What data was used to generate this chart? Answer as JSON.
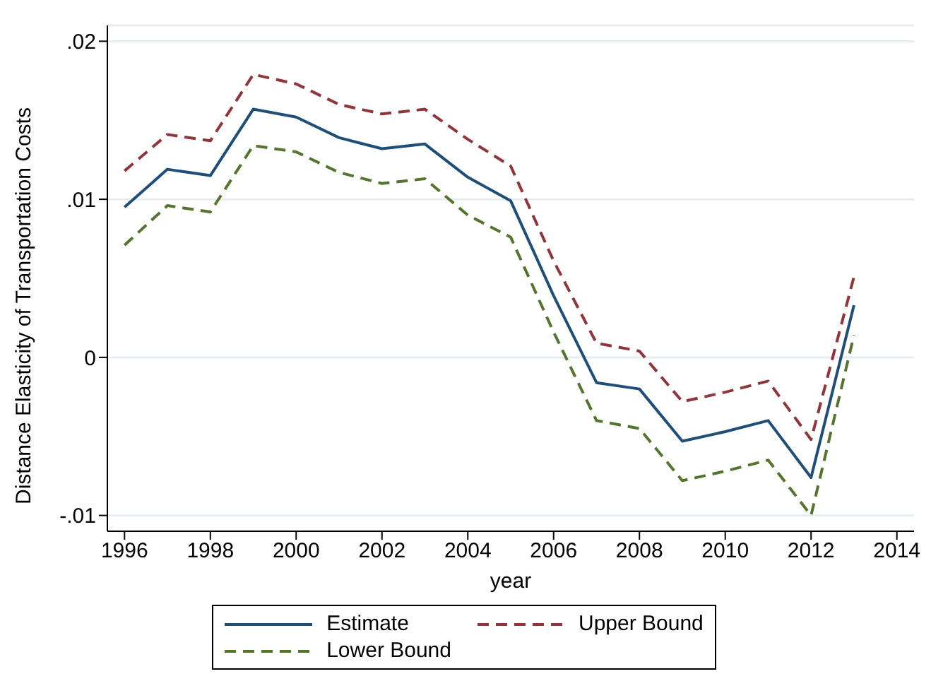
{
  "chart_data": {
    "type": "line",
    "xlabel": "year",
    "ylabel": "Distance Elasticity of Transportation Costs",
    "x": [
      1996,
      1997,
      1998,
      1999,
      2000,
      2001,
      2002,
      2003,
      2004,
      2005,
      2006,
      2007,
      2008,
      2009,
      2010,
      2011,
      2012,
      2013
    ],
    "series": [
      {
        "name": "Estimate",
        "color": "#1f4e79",
        "line_style": "solid",
        "values": [
          0.0095,
          0.0119,
          0.0115,
          0.0157,
          0.0152,
          0.0139,
          0.0132,
          0.0135,
          0.0114,
          0.0099,
          0.0039,
          -0.0016,
          -0.002,
          -0.0053,
          -0.0047,
          -0.004,
          -0.0076,
          0.0033
        ]
      },
      {
        "name": "Upper Bound",
        "color": "#90353b",
        "line_style": "dashed",
        "values": [
          0.0118,
          0.0141,
          0.0137,
          0.0179,
          0.0173,
          0.016,
          0.0154,
          0.0157,
          0.0138,
          0.0121,
          0.0061,
          0.0009,
          0.0004,
          -0.0028,
          -0.0022,
          -0.0015,
          -0.0052,
          0.0051
        ]
      },
      {
        "name": "Lower Bound",
        "color": "#55752f",
        "line_style": "dashed",
        "values": [
          0.0071,
          0.0096,
          0.0092,
          0.0134,
          0.013,
          0.0117,
          0.011,
          0.0113,
          0.009,
          0.0076,
          0.0016,
          -0.004,
          -0.0045,
          -0.0078,
          -0.0072,
          -0.0065,
          -0.01,
          0.0014
        ]
      }
    ],
    "xlim": [
      1995.6,
      2014.4
    ],
    "xticks": [
      1996,
      1998,
      2000,
      2002,
      2004,
      2006,
      2008,
      2010,
      2012,
      2014
    ],
    "ylim": [
      -0.011,
      0.021
    ],
    "yticks": [
      {
        "value": -0.01,
        "label": "-.01"
      },
      {
        "value": 0,
        "label": "0"
      },
      {
        "value": 0.01,
        "label": ".01"
      },
      {
        "value": 0.02,
        "label": ".02"
      }
    ],
    "grid": "y",
    "legend": "bottom",
    "marker": "none"
  }
}
